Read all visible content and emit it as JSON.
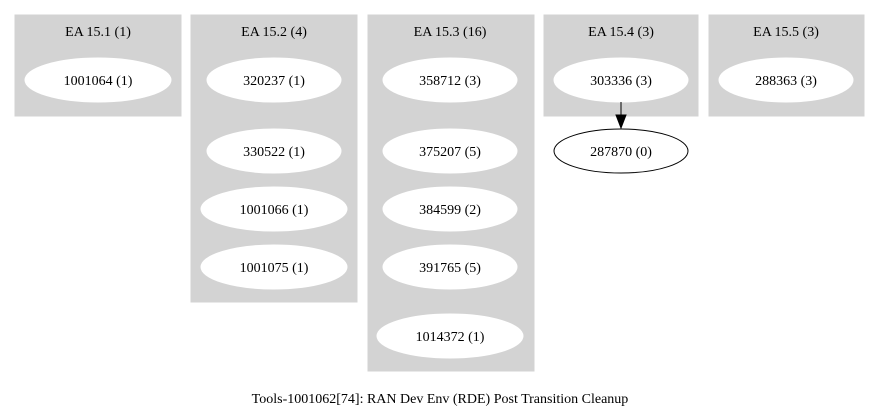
{
  "graph": {
    "caption": "Tools-1001062[74]: RAN Dev Env (RDE) Post Transition Cleanup",
    "clusters": [
      {
        "label": "EA 15.1 (1)",
        "nodes": [
          "1001064 (1)"
        ]
      },
      {
        "label": "EA 15.2 (4)",
        "nodes": [
          "320237 (1)",
          "330522 (1)",
          "1001066 (1)",
          "1001075 (1)"
        ]
      },
      {
        "label": "EA 15.3 (16)",
        "nodes": [
          "358712 (3)",
          "375207 (5)",
          "384599 (2)",
          "391765 (5)",
          "1014372 (1)"
        ]
      },
      {
        "label": "EA 15.4 (3)",
        "nodes": [
          "303336 (3)"
        ]
      },
      {
        "label": "EA 15.5 (3)",
        "nodes": [
          "288363 (3)"
        ]
      }
    ],
    "outside_nodes": [
      "287870 (0)"
    ],
    "edges": [
      {
        "from": "303336 (3)",
        "to": "287870 (0)"
      }
    ],
    "colors": {
      "cluster_fill": "#d3d3d3",
      "node_fill": "#ffffff",
      "edge": "#000000"
    }
  }
}
